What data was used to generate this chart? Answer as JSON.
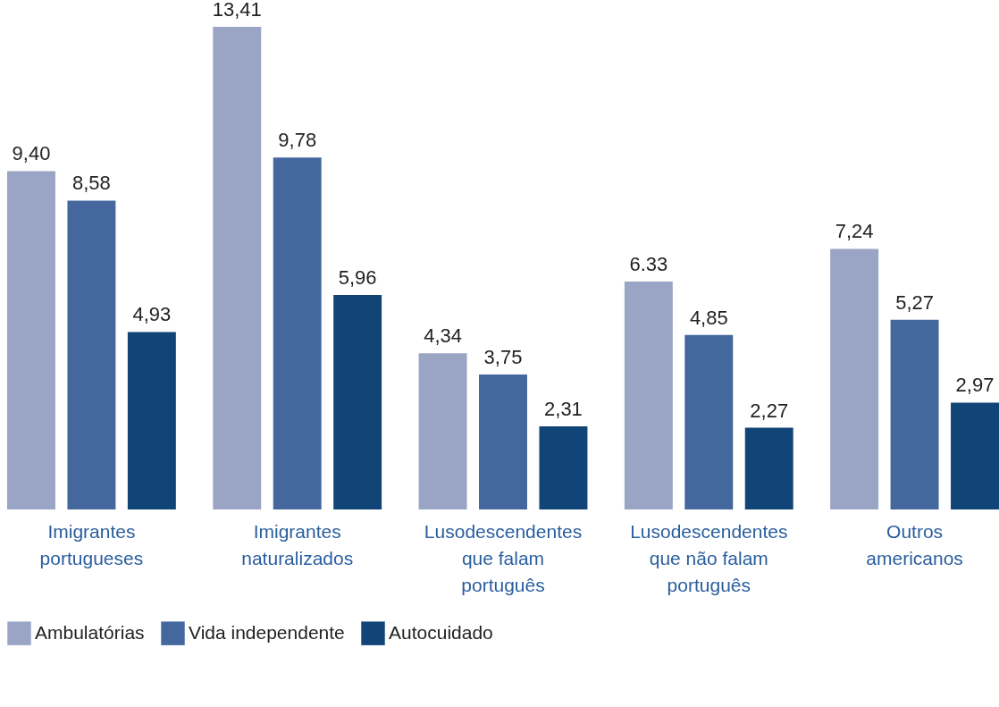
{
  "chart_data": {
    "type": "bar",
    "categories": [
      "Imigrantes portugueses",
      "Imigrantes naturalizados",
      "Lusodescendentes que falam português",
      "Lusodescendentes que não falam português",
      "Outros americanos"
    ],
    "series": [
      {
        "name": "Ambulatórias",
        "color": "#9aa5c6",
        "values": [
          9.4,
          13.41,
          4.34,
          6.33,
          7.24
        ],
        "value_labels": [
          "9,40",
          "13,41",
          "4,34",
          "6.33",
          "7,24"
        ]
      },
      {
        "name": "Vida independente",
        "color": "#44689e",
        "values": [
          8.58,
          9.78,
          3.75,
          4.85,
          5.27
        ],
        "value_labels": [
          "8,58",
          "9,78",
          "3,75",
          "4,85",
          "5,27"
        ]
      },
      {
        "name": "Autocuidado",
        "color": "#114477",
        "values": [
          4.93,
          5.96,
          2.31,
          2.27,
          2.97
        ],
        "value_labels": [
          "4,93",
          "5,96",
          "2,31",
          "2,27",
          "2,97"
        ]
      }
    ],
    "legend": "bottom left"
  }
}
